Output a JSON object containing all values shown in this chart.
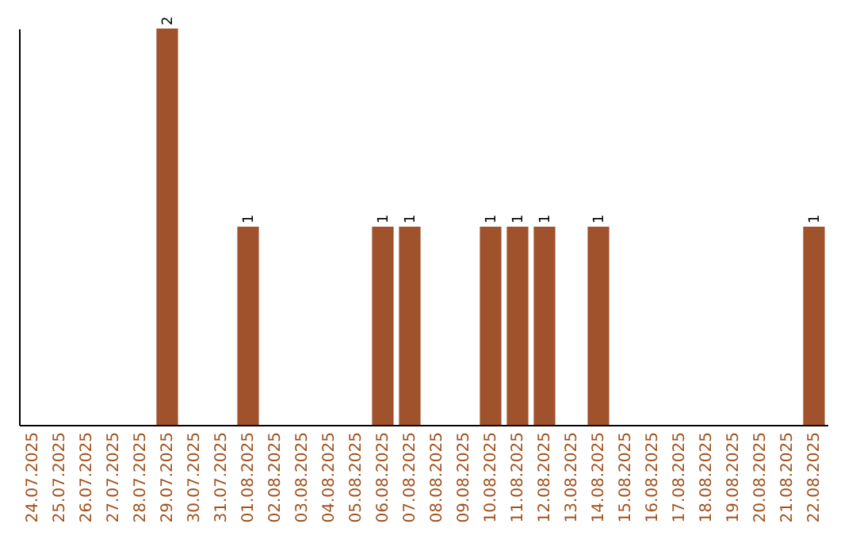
{
  "chart_data": {
    "type": "bar",
    "categories": [
      "24.07.2025",
      "25.07.2025",
      "26.07.2025",
      "27.07.2025",
      "28.07.2025",
      "29.07.2025",
      "30.07.2025",
      "31.07.2025",
      "01.08.2025",
      "02.08.2025",
      "03.08.2025",
      "04.08.2025",
      "05.08.2025",
      "06.08.2025",
      "07.08.2025",
      "08.08.2025",
      "09.08.2025",
      "10.08.2025",
      "11.08.2025",
      "12.08.2025",
      "13.08.2025",
      "14.08.2025",
      "15.08.2025",
      "16.08.2025",
      "17.08.2025",
      "18.08.2025",
      "19.08.2025",
      "20.08.2025",
      "21.08.2025",
      "22.08.2025"
    ],
    "values": [
      0,
      0,
      0,
      0,
      0,
      2,
      0,
      0,
      1,
      0,
      0,
      0,
      0,
      1,
      1,
      0,
      0,
      1,
      1,
      1,
      0,
      1,
      0,
      0,
      0,
      0,
      0,
      0,
      0,
      1
    ],
    "value_labels": [
      null,
      null,
      null,
      null,
      null,
      "2",
      null,
      null,
      "1",
      null,
      null,
      null,
      null,
      "1",
      "1",
      null,
      null,
      "1",
      "1",
      "1",
      null,
      "1",
      null,
      null,
      null,
      null,
      null,
      null,
      null,
      "1"
    ],
    "color": "#a0522d",
    "tick_labels": "x"
  }
}
